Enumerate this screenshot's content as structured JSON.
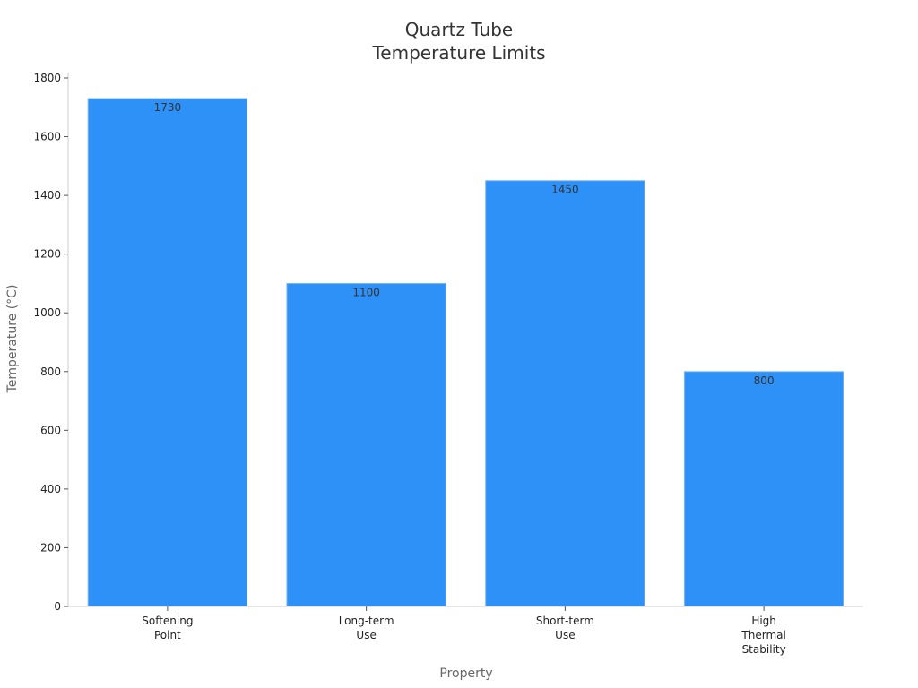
{
  "chart_data": {
    "type": "bar",
    "title_lines": [
      "Quartz Tube",
      "Temperature Limits"
    ],
    "xlabel": "Property",
    "ylabel": "Temperature (°C)",
    "categories": [
      [
        "Softening",
        "Point"
      ],
      [
        "Long-term",
        "Use"
      ],
      [
        "Short-term",
        "Use"
      ],
      [
        "High",
        "Thermal",
        "Stability"
      ]
    ],
    "values": [
      1730,
      1100,
      1450,
      800
    ],
    "data_labels": [
      "1730",
      "1100",
      "1450",
      "800"
    ],
    "ylim": [
      0,
      1800
    ],
    "yticks": [
      0,
      200,
      400,
      600,
      800,
      1000,
      1200,
      1400,
      1600,
      1800
    ],
    "grid": false,
    "bar_color": "#2e91f8",
    "bar_edge_color": "#7fb8f0"
  }
}
